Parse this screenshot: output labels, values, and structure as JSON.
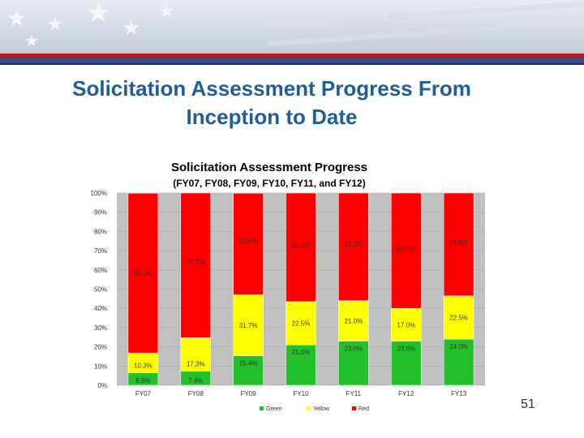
{
  "slide": {
    "title_line1": "Solicitation Assessment Progress From",
    "title_line2": "Inception to Date",
    "page_number": "51"
  },
  "chart_data": {
    "type": "bar",
    "stacked": true,
    "title": "Solicitation Assessment Progress",
    "subtitle": "(FY07, FY08, FY09, FY10, FY11, and FY12)",
    "categories": [
      "FY07",
      "FY08",
      "FY09",
      "FY10",
      "FY11",
      "FY12",
      "FY13"
    ],
    "y_ticks": [
      "0%",
      "10%",
      "20%",
      "30%",
      "40%",
      "50%",
      "60%",
      "70%",
      "80%",
      "90%",
      "100%"
    ],
    "ylim": [
      0,
      100
    ],
    "series": [
      {
        "name": "Green",
        "color": "#22c02a",
        "values": [
          6.5,
          7.4,
          15.4,
          21.0,
          23.0,
          23.0,
          24.0
        ],
        "labels": [
          "6.5%",
          "7.4%",
          "15.4%",
          "21.0%",
          "23.0%",
          "23.0%",
          "24.0%"
        ]
      },
      {
        "name": "Yellow",
        "color": "#ffff00",
        "values": [
          10.3,
          17.3,
          31.7,
          22.5,
          21.0,
          17.0,
          22.5
        ],
        "labels": [
          "10.3%",
          "17.3%",
          "31.7%",
          "22.5%",
          "21.0%",
          "17.0%",
          "22.5%"
        ]
      },
      {
        "name": "Red",
        "color": "#ff0000",
        "values": [
          83.1,
          75.3,
          52.8,
          56.5,
          56.0,
          60.0,
          53.5
        ],
        "labels": [
          "83.1%",
          "75.3%",
          "52.8%",
          "56.5%",
          "56.0%",
          "60.0%",
          "53.5%"
        ]
      }
    ],
    "legend": [
      "Green",
      "Yellow",
      "Red"
    ],
    "legend_position": "bottom",
    "grid": true
  },
  "theme": {
    "title_color": "#1f5e96",
    "plot_bg": "#c0c0c0",
    "chart_title_color": "#000000",
    "label_color": "#333333"
  }
}
